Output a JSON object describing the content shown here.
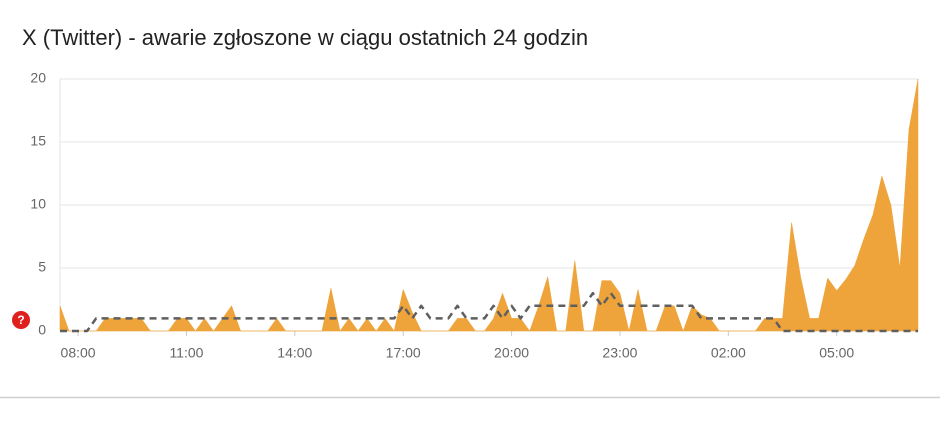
{
  "chart_data": {
    "type": "area",
    "title": "X (Twitter) - awarie zgłoszone w ciągu ostatnich 24 godzin",
    "x": [
      7.5,
      7.75,
      8,
      8.25,
      8.5,
      8.75,
      9,
      9.25,
      9.5,
      9.75,
      10,
      10.25,
      10.5,
      10.75,
      11,
      11.25,
      11.5,
      11.75,
      12,
      12.25,
      12.5,
      12.75,
      13,
      13.25,
      13.5,
      13.75,
      14,
      14.25,
      14.5,
      14.75,
      15,
      15.25,
      15.5,
      15.75,
      16,
      16.25,
      16.5,
      16.75,
      17,
      17.25,
      17.5,
      17.75,
      18,
      18.25,
      18.5,
      18.75,
      19,
      19.25,
      19.5,
      19.75,
      20,
      20.25,
      20.5,
      20.75,
      21,
      21.25,
      21.5,
      21.75,
      22,
      22.25,
      22.5,
      22.75,
      23,
      23.25,
      23.5,
      23.75,
      24,
      24.25,
      24.5,
      24.75,
      25,
      25.25,
      25.5,
      25.75,
      26,
      26.25,
      26.5,
      26.75,
      27,
      27.25,
      27.5,
      27.75,
      28,
      28.25,
      28.5,
      28.75,
      29,
      29.25,
      29.5,
      29.75,
      30,
      30.25,
      30.5,
      30.75,
      31,
      31.25
    ],
    "series": [
      {
        "color": "#eea43a",
        "values": [
          2,
          0,
          0,
          0,
          0,
          1,
          1,
          1,
          1,
          1,
          0,
          0,
          0,
          1,
          1,
          0,
          1,
          0,
          1,
          2,
          0,
          0,
          0,
          0,
          1,
          0,
          0,
          0,
          0,
          0,
          3.4,
          0,
          1,
          0,
          1,
          0,
          1,
          0,
          3.3,
          1.5,
          0,
          0,
          0,
          0,
          1,
          1,
          0,
          0,
          1,
          3,
          1,
          1,
          0,
          2,
          4.3,
          0,
          0,
          5.6,
          0,
          0,
          4,
          4,
          3,
          0,
          3.3,
          0,
          0,
          2,
          2,
          0,
          2,
          1.3,
          1,
          0,
          0,
          0,
          0,
          0,
          1,
          1,
          1,
          8.6,
          4.3,
          1,
          1,
          4.2,
          3.2,
          4.1,
          5.2,
          7.3,
          9.2,
          12.3,
          10,
          5,
          16,
          20
        ]
      },
      {
        "color": "#5f5f5f",
        "dashed": true,
        "values": [
          0,
          0,
          0,
          0,
          1,
          1,
          1,
          1,
          1,
          1,
          1,
          1,
          1,
          1,
          1,
          1,
          1,
          1,
          1,
          1,
          1,
          1,
          1,
          1,
          1,
          1,
          1,
          1,
          1,
          1,
          1,
          1,
          1,
          1,
          1,
          1,
          1,
          1,
          2,
          1,
          2,
          1,
          1,
          1,
          2,
          1,
          1,
          1,
          2,
          1,
          2,
          1,
          2,
          2,
          2,
          2,
          2,
          2,
          2,
          3,
          2,
          3,
          2,
          2,
          2,
          2,
          2,
          2,
          2,
          2,
          2,
          1,
          1,
          1,
          1,
          1,
          1,
          1,
          1,
          1,
          0,
          0,
          0,
          0,
          0,
          0,
          0,
          0,
          0,
          0,
          0,
          0,
          0,
          0,
          0,
          0
        ]
      }
    ],
    "xlim": [
      7.5,
      31.25
    ],
    "xticks": [
      {
        "value": 8,
        "label": "08:00"
      },
      {
        "value": 11,
        "label": "11:00"
      },
      {
        "value": 14,
        "label": "14:00"
      },
      {
        "value": 17,
        "label": "17:00"
      },
      {
        "value": 20,
        "label": "20:00"
      },
      {
        "value": 23,
        "label": "23:00"
      },
      {
        "value": 26,
        "label": "02:00"
      },
      {
        "value": 29,
        "label": "05:00"
      }
    ],
    "ylim": [
      0,
      20
    ],
    "yticks": [
      0,
      5,
      10,
      15,
      20
    ],
    "grid": true
  }
}
